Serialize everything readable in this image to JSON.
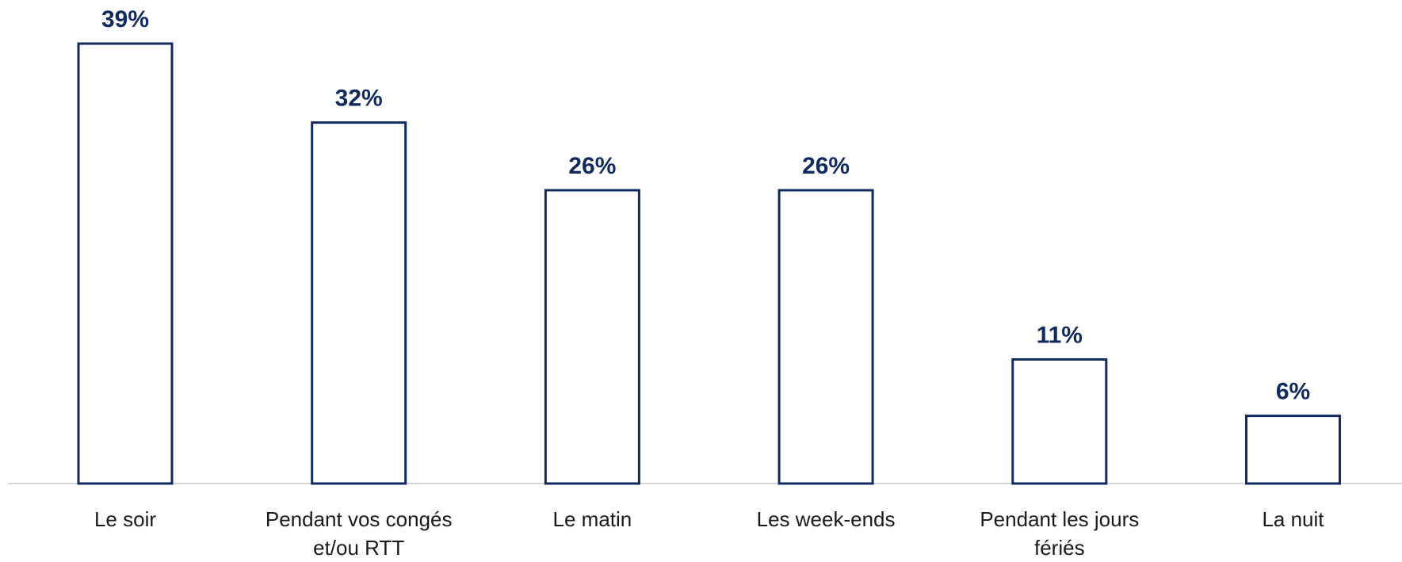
{
  "chart_data": {
    "type": "bar",
    "categories": [
      "Le soir",
      "Pendant vos congés et/ou RTT",
      "Le matin",
      "Les week-ends",
      "Pendant les jours fériés",
      "La nuit"
    ],
    "values": [
      39,
      32,
      26,
      26,
      11,
      6
    ],
    "value_labels": [
      "39%",
      "32%",
      "26%",
      "26%",
      "11%",
      "6%"
    ],
    "color": "#112a5e"
  }
}
